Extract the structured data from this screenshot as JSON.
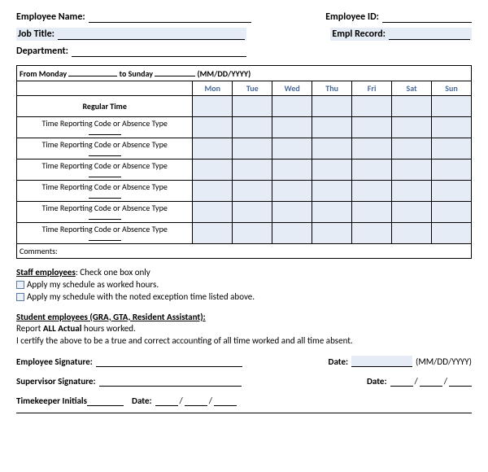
{
  "header": {
    "employee_name_label": "Employee Name:",
    "employee_id_label": "Employee ID:",
    "job_title_label": "Job Title:",
    "empl_record_label": "Empl Record:",
    "department_label": "Department:"
  },
  "table": {
    "date_range_prefix": "From Monday",
    "date_range_mid": "to Sunday",
    "date_range_hint": "(MM/DD/YYYY)",
    "days": [
      "Mon",
      "Tue",
      "Wed",
      "Thu",
      "Fri",
      "Sat",
      "Sun"
    ],
    "regular_time_label": "Regular Time",
    "code_row_label": "Time Reporting Code or Absence Type",
    "code_row_count": 6,
    "comments_label": "Comments:",
    "colors": {
      "shade_bg": "#e6ecf5",
      "day_head_text": "#4a6a9a",
      "border": "#000000"
    }
  },
  "staff": {
    "heading": "Staff employees",
    "heading_suffix": ": Check one box only",
    "option1": "Apply my schedule as worked hours.",
    "option2": "Apply my schedule with the noted exception time listed above."
  },
  "student": {
    "heading": "Student employees (GRA, GTA, Resident Assistant):",
    "line1_prefix": "Report ",
    "line1_bold": "ALL Actual",
    "line1_suffix": " hours worked.",
    "certify": "I certify the above to be a true and correct accounting of all time worked and all time absent."
  },
  "signatures": {
    "employee_sig_label": "Employee Signature:",
    "supervisor_sig_label": "Supervisor Signature:",
    "timekeeper_label": "Timekeeper Initials",
    "date_label": "Date:",
    "date_hint": "(MM/DD/YYYY)"
  }
}
